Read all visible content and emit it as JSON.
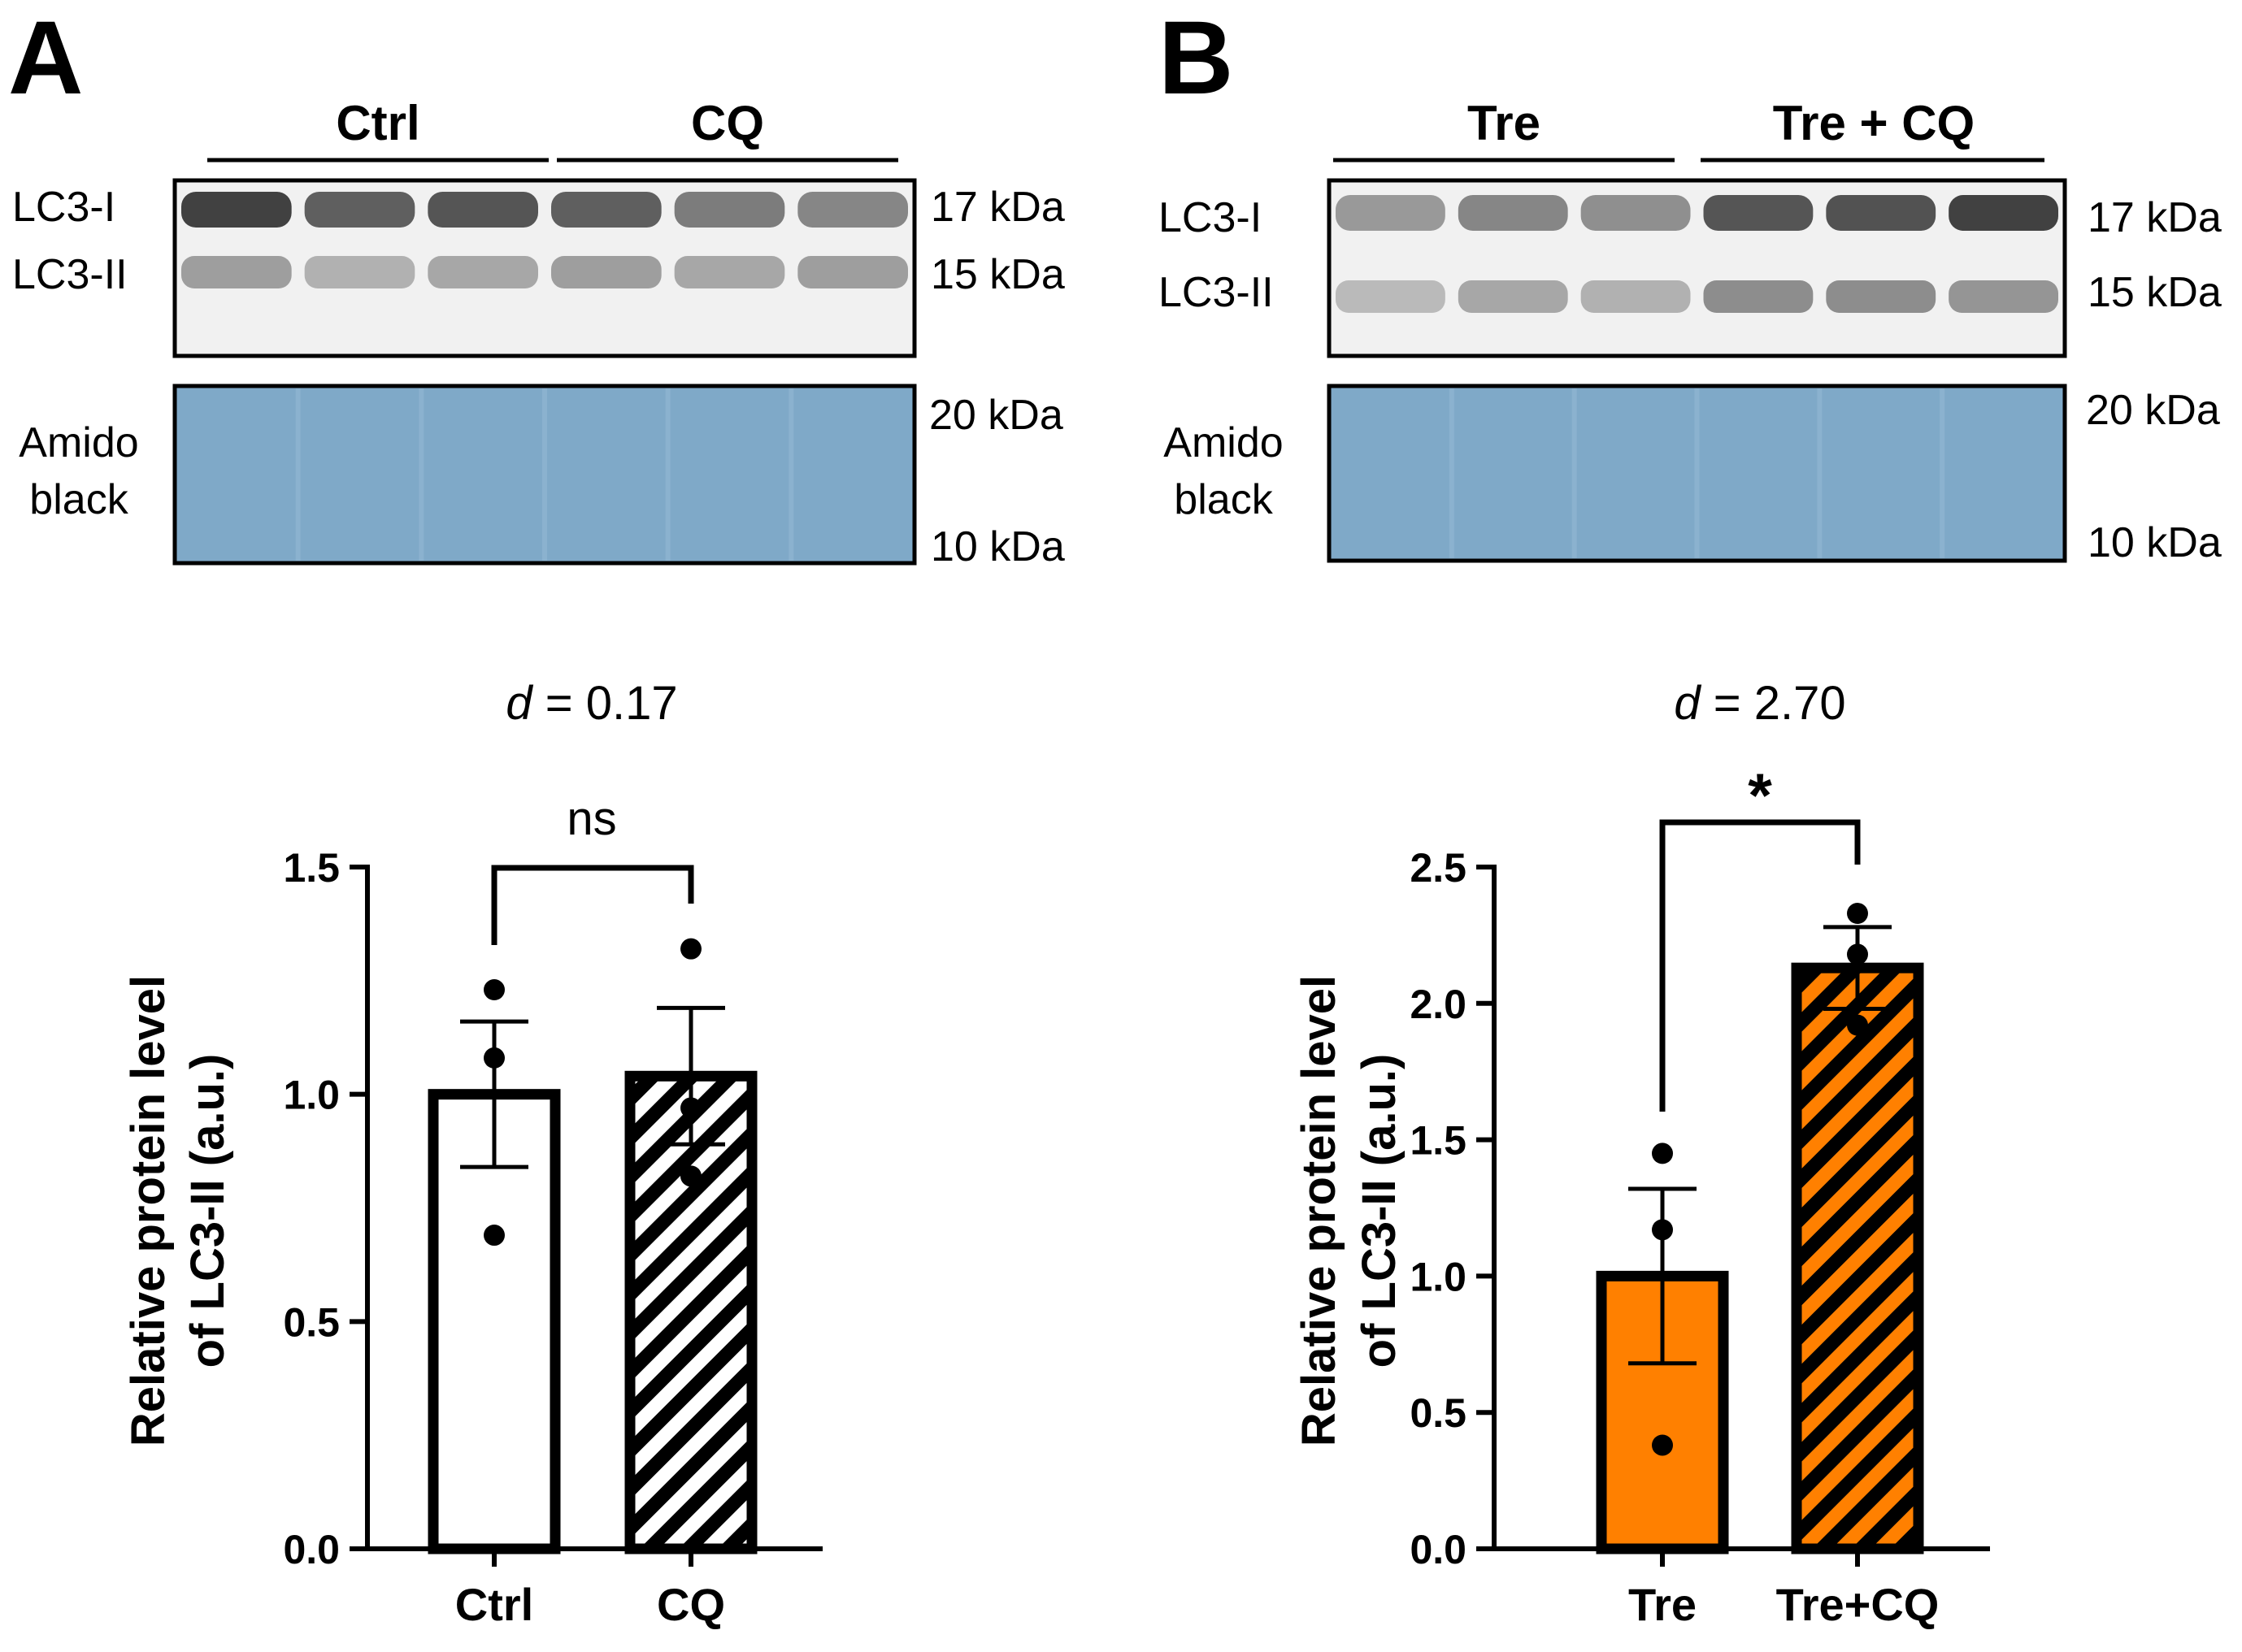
{
  "panels": [
    {
      "letter": "A",
      "blot": {
        "groups": [
          "Ctrl",
          "CQ"
        ],
        "band_labels": [
          "LC3-I",
          "LC3-II"
        ],
        "band_markers": [
          "17 kDa",
          "15 kDa"
        ],
        "stain_label_line1": "Amido",
        "stain_label_line2": "black",
        "stain_markers": [
          "20 kDa",
          "10 kDa"
        ],
        "colors": {
          "stain": "#7fa9c8"
        }
      },
      "effect_size_symbol": "d",
      "effect_size_value": " = 0.17",
      "significance": "ns"
    },
    {
      "letter": "B",
      "blot": {
        "groups": [
          "Tre",
          "Tre + CQ"
        ],
        "band_labels": [
          "LC3-I",
          "LC3-II"
        ],
        "band_markers": [
          "17 kDa",
          "15 kDa"
        ],
        "stain_label_line1": "Amido",
        "stain_label_line2": "black",
        "stain_markers": [
          "20 kDa",
          "10 kDa"
        ],
        "colors": {
          "stain": "#7fa9c8"
        }
      },
      "effect_size_symbol": "d",
      "effect_size_value": " = 2.70",
      "significance": "*"
    }
  ],
  "chart_data": [
    {
      "type": "bar",
      "ylabel_line1": "Relative protein level",
      "ylabel_line2": "of LC3-II (a.u.)",
      "ylim": [
        0,
        1.5
      ],
      "yticks": [
        "0.0",
        "0.5",
        "1.0",
        "1.5"
      ],
      "ytick_values": [
        0.0,
        0.5,
        1.0,
        1.5
      ],
      "categories": [
        "Ctrl",
        "CQ"
      ],
      "values": [
        1.0,
        1.04
      ],
      "sem": [
        0.16,
        0.15
      ],
      "points": [
        [
          1.23,
          1.08,
          0.69
        ],
        [
          1.32,
          0.97,
          0.82
        ]
      ],
      "fills": [
        "solid",
        "hatched"
      ],
      "colors": {
        "bar": "#ffffff",
        "hatch": "#ffffff",
        "outline": "#000000"
      }
    },
    {
      "type": "bar",
      "ylabel_line1": "Relative protein level",
      "ylabel_line2": "of LC3-II (a.u.)",
      "ylim": [
        0,
        2.5
      ],
      "yticks": [
        "0.0",
        "0.5",
        "1.0",
        "1.5",
        "2.0",
        "2.5"
      ],
      "ytick_values": [
        0.0,
        0.5,
        1.0,
        1.5,
        2.0,
        2.5
      ],
      "categories": [
        "Tre",
        "Tre+CQ"
      ],
      "values": [
        1.0,
        2.13
      ],
      "sem": [
        0.32,
        0.15
      ],
      "points": [
        [
          1.45,
          1.17,
          0.38
        ],
        [
          2.33,
          2.18,
          1.92
        ]
      ],
      "fills": [
        "solid",
        "hatched"
      ],
      "colors": {
        "bar": "#ff8000",
        "hatch": "#ff8000",
        "outline": "#000000"
      }
    }
  ]
}
